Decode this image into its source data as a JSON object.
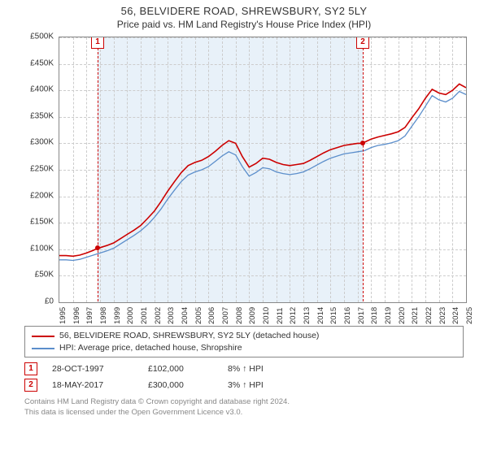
{
  "title": {
    "line1": "56, BELVIDERE ROAD, SHREWSBURY, SY2 5LY",
    "line2": "Price paid vs. HM Land Registry's House Price Index (HPI)"
  },
  "chart": {
    "type": "line",
    "background_color": "#ffffff",
    "grid_color": "#cccccc",
    "axis_color": "#888888",
    "shade_color": "#e4eef8",
    "shade_from_year": 1997.82,
    "shade_to_year": 2017.38,
    "y": {
      "min": 0,
      "max": 500000,
      "tick_step": 50000,
      "labels": [
        "£0",
        "£50K",
        "£100K",
        "£150K",
        "£200K",
        "£250K",
        "£300K",
        "£350K",
        "£400K",
        "£450K",
        "£500K"
      ]
    },
    "x": {
      "min": 1995,
      "max": 2025,
      "tick_step": 1,
      "labels": [
        "1995",
        "1996",
        "1997",
        "1998",
        "1999",
        "2000",
        "2001",
        "2002",
        "2003",
        "2004",
        "2005",
        "2006",
        "2007",
        "2008",
        "2009",
        "2010",
        "2011",
        "2012",
        "2013",
        "2014",
        "2015",
        "2016",
        "2017",
        "2018",
        "2019",
        "2020",
        "2021",
        "2022",
        "2023",
        "2024",
        "2025"
      ],
      "label_fontsize": 9.5,
      "label_rotation_deg": -90
    },
    "series_property": {
      "name": "56, BELVIDERE ROAD, SHREWSBURY, SY2 5LY (detached house)",
      "color": "#cc0000",
      "line_width": 1.6,
      "data": [
        [
          1995.0,
          88000
        ],
        [
          1995.5,
          88000
        ],
        [
          1996.0,
          87000
        ],
        [
          1996.5,
          89000
        ],
        [
          1997.0,
          93000
        ],
        [
          1997.5,
          98000
        ],
        [
          1997.82,
          102000
        ],
        [
          1998.0,
          103000
        ],
        [
          1998.5,
          107000
        ],
        [
          1999.0,
          112000
        ],
        [
          1999.5,
          120000
        ],
        [
          2000.0,
          128000
        ],
        [
          2000.5,
          136000
        ],
        [
          2001.0,
          145000
        ],
        [
          2001.5,
          158000
        ],
        [
          2002.0,
          172000
        ],
        [
          2002.5,
          190000
        ],
        [
          2003.0,
          210000
        ],
        [
          2003.5,
          228000
        ],
        [
          2004.0,
          245000
        ],
        [
          2004.5,
          258000
        ],
        [
          2005.0,
          264000
        ],
        [
          2005.5,
          268000
        ],
        [
          2006.0,
          275000
        ],
        [
          2006.5,
          285000
        ],
        [
          2007.0,
          296000
        ],
        [
          2007.5,
          305000
        ],
        [
          2008.0,
          300000
        ],
        [
          2008.5,
          275000
        ],
        [
          2009.0,
          255000
        ],
        [
          2009.5,
          262000
        ],
        [
          2010.0,
          272000
        ],
        [
          2010.5,
          270000
        ],
        [
          2011.0,
          264000
        ],
        [
          2011.5,
          260000
        ],
        [
          2012.0,
          258000
        ],
        [
          2012.5,
          260000
        ],
        [
          2013.0,
          262000
        ],
        [
          2013.5,
          268000
        ],
        [
          2014.0,
          275000
        ],
        [
          2014.5,
          282000
        ],
        [
          2015.0,
          288000
        ],
        [
          2015.5,
          292000
        ],
        [
          2016.0,
          296000
        ],
        [
          2016.5,
          298000
        ],
        [
          2017.0,
          300000
        ],
        [
          2017.38,
          300000
        ],
        [
          2017.5,
          302000
        ],
        [
          2018.0,
          308000
        ],
        [
          2018.5,
          312000
        ],
        [
          2019.0,
          315000
        ],
        [
          2019.5,
          318000
        ],
        [
          2020.0,
          322000
        ],
        [
          2020.5,
          330000
        ],
        [
          2021.0,
          348000
        ],
        [
          2021.5,
          365000
        ],
        [
          2022.0,
          385000
        ],
        [
          2022.5,
          402000
        ],
        [
          2023.0,
          395000
        ],
        [
          2023.5,
          392000
        ],
        [
          2024.0,
          400000
        ],
        [
          2024.5,
          412000
        ],
        [
          2025.0,
          405000
        ]
      ]
    },
    "series_hpi": {
      "name": "HPI: Average price, detached house, Shropshire",
      "color": "#5b8ecb",
      "line_width": 1.3,
      "data": [
        [
          1995.0,
          80000
        ],
        [
          1995.5,
          80000
        ],
        [
          1996.0,
          79000
        ],
        [
          1996.5,
          81000
        ],
        [
          1997.0,
          85000
        ],
        [
          1997.5,
          89000
        ],
        [
          1998.0,
          93000
        ],
        [
          1998.5,
          97000
        ],
        [
          1999.0,
          102000
        ],
        [
          1999.5,
          110000
        ],
        [
          2000.0,
          118000
        ],
        [
          2000.5,
          126000
        ],
        [
          2001.0,
          135000
        ],
        [
          2001.5,
          146000
        ],
        [
          2002.0,
          160000
        ],
        [
          2002.5,
          176000
        ],
        [
          2003.0,
          195000
        ],
        [
          2003.5,
          212000
        ],
        [
          2004.0,
          228000
        ],
        [
          2004.5,
          240000
        ],
        [
          2005.0,
          246000
        ],
        [
          2005.5,
          250000
        ],
        [
          2006.0,
          256000
        ],
        [
          2006.5,
          266000
        ],
        [
          2007.0,
          276000
        ],
        [
          2007.5,
          284000
        ],
        [
          2008.0,
          278000
        ],
        [
          2008.5,
          256000
        ],
        [
          2009.0,
          238000
        ],
        [
          2009.5,
          245000
        ],
        [
          2010.0,
          254000
        ],
        [
          2010.5,
          252000
        ],
        [
          2011.0,
          246000
        ],
        [
          2011.5,
          243000
        ],
        [
          2012.0,
          241000
        ],
        [
          2012.5,
          243000
        ],
        [
          2013.0,
          246000
        ],
        [
          2013.5,
          252000
        ],
        [
          2014.0,
          259000
        ],
        [
          2014.5,
          266000
        ],
        [
          2015.0,
          272000
        ],
        [
          2015.5,
          276000
        ],
        [
          2016.0,
          280000
        ],
        [
          2016.5,
          282000
        ],
        [
          2017.0,
          284000
        ],
        [
          2017.5,
          286000
        ],
        [
          2018.0,
          292000
        ],
        [
          2018.5,
          296000
        ],
        [
          2019.0,
          298000
        ],
        [
          2019.5,
          301000
        ],
        [
          2020.0,
          305000
        ],
        [
          2020.5,
          314000
        ],
        [
          2021.0,
          332000
        ],
        [
          2021.5,
          350000
        ],
        [
          2022.0,
          370000
        ],
        [
          2022.5,
          390000
        ],
        [
          2023.0,
          382000
        ],
        [
          2023.5,
          378000
        ],
        [
          2024.0,
          385000
        ],
        [
          2024.5,
          398000
        ],
        [
          2025.0,
          392000
        ]
      ]
    },
    "markers": [
      {
        "id": "1",
        "year": 1997.82,
        "value": 102000
      },
      {
        "id": "2",
        "year": 2017.38,
        "value": 300000
      }
    ]
  },
  "legend": {
    "items": [
      {
        "label": "56, BELVIDERE ROAD, SHREWSBURY, SY2 5LY (detached house)",
        "color": "#cc0000"
      },
      {
        "label": "HPI: Average price, detached house, Shropshire",
        "color": "#5b8ecb"
      }
    ]
  },
  "sales": [
    {
      "id": "1",
      "date": "28-OCT-1997",
      "price": "£102,000",
      "vs_hpi": "8% ↑ HPI"
    },
    {
      "id": "2",
      "date": "18-MAY-2017",
      "price": "£300,000",
      "vs_hpi": "3% ↑ HPI"
    }
  ],
  "footer": {
    "line1": "Contains HM Land Registry data © Crown copyright and database right 2024.",
    "line2": "This data is licensed under the Open Government Licence v3.0."
  }
}
